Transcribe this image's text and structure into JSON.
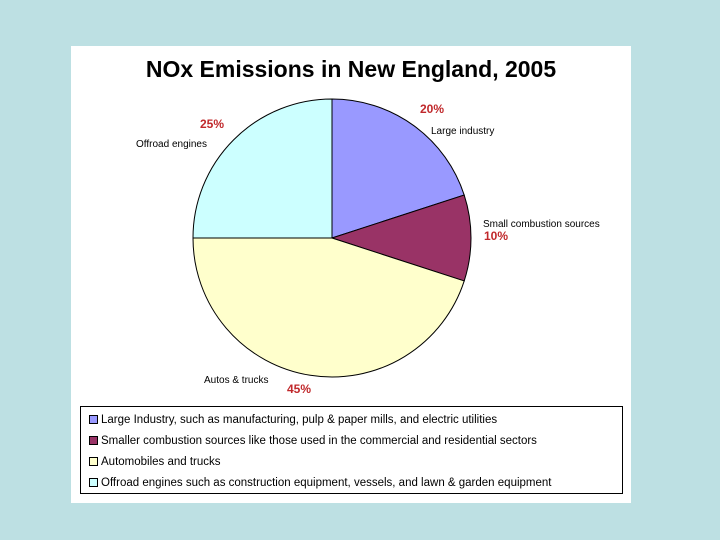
{
  "chart_data": {
    "type": "pie",
    "title": "NOx Emissions in New England, 2005",
    "slices": [
      {
        "label": "Large industry",
        "value": 20,
        "pct_label": "20%",
        "color": "#9999ff"
      },
      {
        "label": "Small combustion sources",
        "value": 10,
        "pct_label": "10%",
        "color": "#993366"
      },
      {
        "label": "Autos & trucks",
        "value": 45,
        "pct_label": "45%",
        "color": "#ffffcc"
      },
      {
        "label": "Offroad engines",
        "value": 25,
        "pct_label": "25%",
        "color": "#ccffff"
      }
    ],
    "legend": {
      "placement": "bottom",
      "entries": [
        "Large Industry, such as manufacturing, pulp & paper mills, and electric utilities",
        "Smaller combustion sources like those used in the commercial and residential sectors",
        "Automobiles and trucks",
        "Offroad engines such as construction equipment, vessels, and lawn & garden equipment"
      ]
    },
    "start_angle_deg": 0,
    "direction": "clockwise"
  }
}
